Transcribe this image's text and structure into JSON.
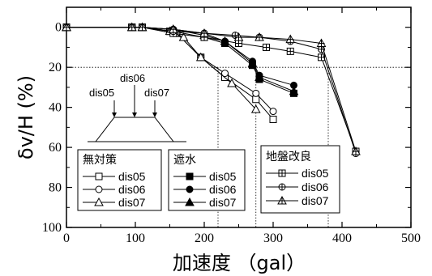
{
  "chart_data": {
    "type": "line",
    "xlabel": "加速度 （gal）",
    "ylabel": "δv/H (%)",
    "xlim": [
      0,
      500
    ],
    "ylim": [
      100,
      -10
    ],
    "x_ticks": [
      "0",
      "100",
      "200",
      "300",
      "400",
      "500"
    ],
    "y_ticks": [
      "0",
      "20",
      "40",
      "60",
      "80",
      "100"
    ],
    "reference_lines": {
      "horizontal_y": 20,
      "vertical_x": [
        220,
        275,
        380
      ]
    },
    "groups": [
      {
        "title": "無対策",
        "series": [
          {
            "name": "dis05",
            "marker": "open-square",
            "fill": "#ffffff",
            "points": [
              [
                0,
                0
              ],
              [
                95,
                0
              ],
              [
                110,
                0
              ],
              [
                150,
                2
              ],
              [
                160,
                3
              ],
              [
                195,
                15
              ],
              [
                230,
                25
              ],
              [
                275,
                36
              ],
              [
                300,
                46
              ]
            ]
          },
          {
            "name": "dis06",
            "marker": "open-circle",
            "fill": "#ffffff",
            "points": [
              [
                0,
                0
              ],
              [
                95,
                0
              ],
              [
                110,
                0
              ],
              [
                150,
                2
              ],
              [
                160,
                3
              ],
              [
                195,
                15
              ],
              [
                230,
                23
              ],
              [
                275,
                33
              ],
              [
                300,
                42
              ]
            ]
          },
          {
            "name": "dis07",
            "marker": "open-triangle",
            "fill": "#ffffff",
            "points": [
              [
                0,
                0
              ],
              [
                95,
                0
              ],
              [
                110,
                0
              ],
              [
                150,
                2
              ],
              [
                170,
                5
              ],
              [
                195,
                15
              ],
              [
                240,
                28
              ],
              [
                275,
                41
              ]
            ]
          }
        ]
      },
      {
        "title": "遮水",
        "series": [
          {
            "name": "dis05",
            "marker": "filled-square",
            "fill": "#000000",
            "points": [
              [
                0,
                0
              ],
              [
                95,
                0
              ],
              [
                110,
                0
              ],
              [
                155,
                2
              ],
              [
                200,
                5
              ],
              [
                230,
                8
              ],
              [
                270,
                19
              ],
              [
                280,
                26
              ],
              [
                330,
                33
              ]
            ]
          },
          {
            "name": "dis06",
            "marker": "filled-circle",
            "fill": "#000000",
            "points": [
              [
                0,
                0
              ],
              [
                95,
                0
              ],
              [
                110,
                0
              ],
              [
                155,
                1
              ],
              [
                200,
                3
              ],
              [
                230,
                7
              ],
              [
                270,
                17
              ],
              [
                280,
                24
              ],
              [
                330,
                29
              ]
            ]
          },
          {
            "name": "dis07",
            "marker": "filled-triangle",
            "fill": "#000000",
            "points": [
              [
                0,
                0
              ],
              [
                95,
                0
              ],
              [
                110,
                0
              ],
              [
                155,
                1
              ],
              [
                200,
                4
              ],
              [
                230,
                7
              ],
              [
                270,
                18
              ],
              [
                280,
                25
              ],
              [
                330,
                32
              ]
            ]
          }
        ]
      },
      {
        "title": "地盤改良",
        "series": [
          {
            "name": "dis05",
            "marker": "square-plus",
            "fill": "#ffffff",
            "points": [
              [
                0,
                0
              ],
              [
                95,
                0
              ],
              [
                110,
                0
              ],
              [
                155,
                3
              ],
              [
                200,
                5
              ],
              [
                250,
                8
              ],
              [
                290,
                10
              ],
              [
                325,
                12
              ],
              [
                370,
                15
              ],
              [
                420,
                62
              ]
            ]
          },
          {
            "name": "dis06",
            "marker": "circle-plus",
            "fill": "#ffffff",
            "points": [
              [
                0,
                0
              ],
              [
                95,
                0
              ],
              [
                110,
                0
              ],
              [
                155,
                2
              ],
              [
                200,
                3
              ],
              [
                245,
                4
              ],
              [
                280,
                5
              ],
              [
                325,
                7
              ],
              [
                370,
                11
              ],
              [
                420,
                63
              ]
            ]
          },
          {
            "name": "dis07",
            "marker": "triangle-plus",
            "fill": "#ffffff",
            "points": [
              [
                0,
                0
              ],
              [
                95,
                0
              ],
              [
                110,
                0
              ],
              [
                155,
                1
              ],
              [
                200,
                3
              ],
              [
                250,
                5
              ],
              [
                280,
                5
              ],
              [
                325,
                6
              ],
              [
                370,
                8
              ],
              [
                420,
                62
              ]
            ]
          }
        ]
      }
    ],
    "inset_labels": [
      "dis05",
      "dis06",
      "dis07"
    ]
  }
}
